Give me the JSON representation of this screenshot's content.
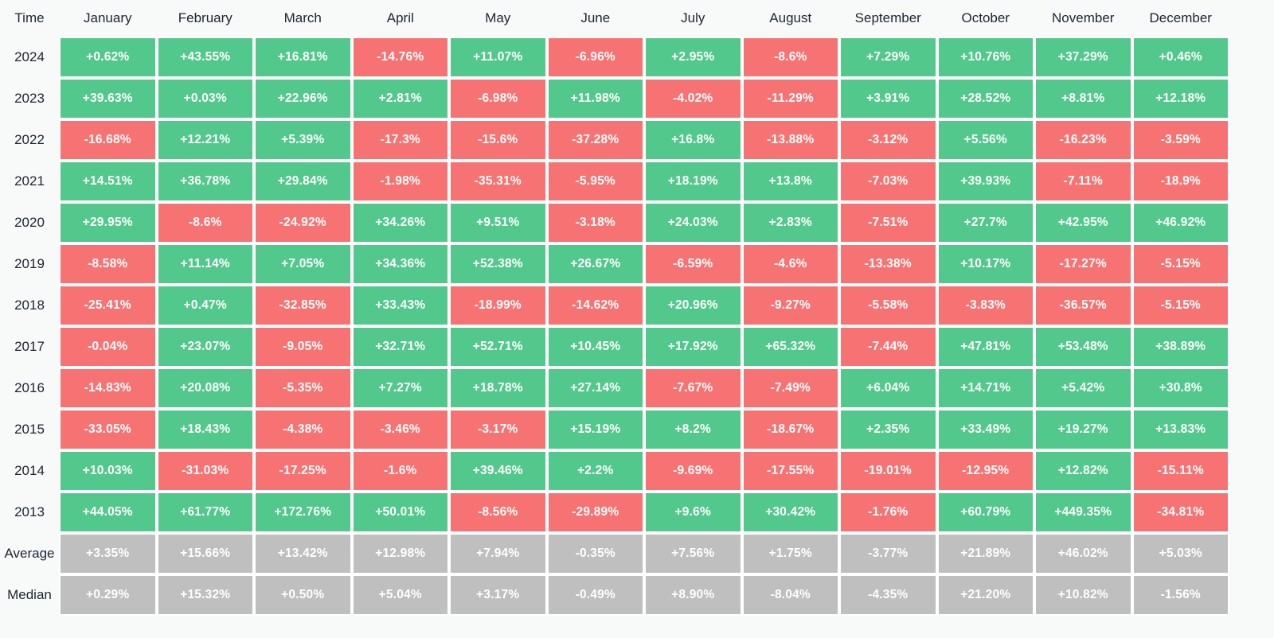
{
  "table": {
    "corner_label": "Time",
    "months": [
      "January",
      "February",
      "March",
      "April",
      "May",
      "June",
      "July",
      "August",
      "September",
      "October",
      "November",
      "December"
    ],
    "rows": [
      {
        "label": "2024",
        "type": "year",
        "values": [
          "+0.62%",
          "+43.55%",
          "+16.81%",
          "-14.76%",
          "+11.07%",
          "-6.96%",
          "+2.95%",
          "-8.6%",
          "+7.29%",
          "+10.76%",
          "+37.29%",
          "+0.46%"
        ]
      },
      {
        "label": "2023",
        "type": "year",
        "values": [
          "+39.63%",
          "+0.03%",
          "+22.96%",
          "+2.81%",
          "-6.98%",
          "+11.98%",
          "-4.02%",
          "-11.29%",
          "+3.91%",
          "+28.52%",
          "+8.81%",
          "+12.18%"
        ]
      },
      {
        "label": "2022",
        "type": "year",
        "values": [
          "-16.68%",
          "+12.21%",
          "+5.39%",
          "-17.3%",
          "-15.6%",
          "-37.28%",
          "+16.8%",
          "-13.88%",
          "-3.12%",
          "+5.56%",
          "-16.23%",
          "-3.59%"
        ]
      },
      {
        "label": "2021",
        "type": "year",
        "values": [
          "+14.51%",
          "+36.78%",
          "+29.84%",
          "-1.98%",
          "-35.31%",
          "-5.95%",
          "+18.19%",
          "+13.8%",
          "-7.03%",
          "+39.93%",
          "-7.11%",
          "-18.9%"
        ]
      },
      {
        "label": "2020",
        "type": "year",
        "values": [
          "+29.95%",
          "-8.6%",
          "-24.92%",
          "+34.26%",
          "+9.51%",
          "-3.18%",
          "+24.03%",
          "+2.83%",
          "-7.51%",
          "+27.7%",
          "+42.95%",
          "+46.92%"
        ]
      },
      {
        "label": "2019",
        "type": "year",
        "values": [
          "-8.58%",
          "+11.14%",
          "+7.05%",
          "+34.36%",
          "+52.38%",
          "+26.67%",
          "-6.59%",
          "-4.6%",
          "-13.38%",
          "+10.17%",
          "-17.27%",
          "-5.15%"
        ]
      },
      {
        "label": "2018",
        "type": "year",
        "values": [
          "-25.41%",
          "+0.47%",
          "-32.85%",
          "+33.43%",
          "-18.99%",
          "-14.62%",
          "+20.96%",
          "-9.27%",
          "-5.58%",
          "-3.83%",
          "-36.57%",
          "-5.15%"
        ]
      },
      {
        "label": "2017",
        "type": "year",
        "values": [
          "-0.04%",
          "+23.07%",
          "-9.05%",
          "+32.71%",
          "+52.71%",
          "+10.45%",
          "+17.92%",
          "+65.32%",
          "-7.44%",
          "+47.81%",
          "+53.48%",
          "+38.89%"
        ]
      },
      {
        "label": "2016",
        "type": "year",
        "values": [
          "-14.83%",
          "+20.08%",
          "-5.35%",
          "+7.27%",
          "+18.78%",
          "+27.14%",
          "-7.67%",
          "-7.49%",
          "+6.04%",
          "+14.71%",
          "+5.42%",
          "+30.8%"
        ]
      },
      {
        "label": "2015",
        "type": "year",
        "values": [
          "-33.05%",
          "+18.43%",
          "-4.38%",
          "-3.46%",
          "-3.17%",
          "+15.19%",
          "+8.2%",
          "-18.67%",
          "+2.35%",
          "+33.49%",
          "+19.27%",
          "+13.83%"
        ]
      },
      {
        "label": "2014",
        "type": "year",
        "values": [
          "+10.03%",
          "-31.03%",
          "-17.25%",
          "-1.6%",
          "+39.46%",
          "+2.2%",
          "-9.69%",
          "-17.55%",
          "-19.01%",
          "-12.95%",
          "+12.82%",
          "-15.11%"
        ]
      },
      {
        "label": "2013",
        "type": "year",
        "values": [
          "+44.05%",
          "+61.77%",
          "+172.76%",
          "+50.01%",
          "-8.56%",
          "-29.89%",
          "+9.6%",
          "+30.42%",
          "-1.76%",
          "+60.79%",
          "+449.35%",
          "-34.81%"
        ]
      },
      {
        "label": "Average",
        "type": "summary",
        "values": [
          "+3.35%",
          "+15.66%",
          "+13.42%",
          "+12.98%",
          "+7.94%",
          "-0.35%",
          "+7.56%",
          "+1.75%",
          "-3.77%",
          "+21.89%",
          "+46.02%",
          "+5.03%"
        ]
      },
      {
        "label": "Median",
        "type": "summary",
        "values": [
          "+0.29%",
          "+15.32%",
          "+0.50%",
          "+5.04%",
          "+3.17%",
          "-0.49%",
          "+8.90%",
          "-8.04%",
          "-4.35%",
          "+21.20%",
          "+10.82%",
          "-1.56%"
        ]
      }
    ]
  },
  "colors": {
    "positive": "#52c88c",
    "negative": "#f77373",
    "summary": "#bfbfbf",
    "cell_text": "#ffffff",
    "header_text": "#1f2430",
    "background": "#f8f9f9",
    "cell_gap": "#ffffff"
  },
  "chart_data": {
    "type": "heatmap",
    "title": "",
    "columns": [
      "January",
      "February",
      "March",
      "April",
      "May",
      "June",
      "July",
      "August",
      "September",
      "October",
      "November",
      "December"
    ],
    "row_labels": [
      "2024",
      "2023",
      "2022",
      "2021",
      "2020",
      "2019",
      "2018",
      "2017",
      "2016",
      "2015",
      "2014",
      "2013",
      "Average",
      "Median"
    ],
    "unit": "percent",
    "legend_position": "none",
    "grid": false,
    "series": [
      {
        "name": "2024",
        "values": [
          0.62,
          43.55,
          16.81,
          -14.76,
          11.07,
          -6.96,
          2.95,
          -8.6,
          7.29,
          10.76,
          37.29,
          0.46
        ]
      },
      {
        "name": "2023",
        "values": [
          39.63,
          0.03,
          22.96,
          2.81,
          -6.98,
          11.98,
          -4.02,
          -11.29,
          3.91,
          28.52,
          8.81,
          12.18
        ]
      },
      {
        "name": "2022",
        "values": [
          -16.68,
          12.21,
          5.39,
          -17.3,
          -15.6,
          -37.28,
          16.8,
          -13.88,
          -3.12,
          5.56,
          -16.23,
          -3.59
        ]
      },
      {
        "name": "2021",
        "values": [
          14.51,
          36.78,
          29.84,
          -1.98,
          -35.31,
          -5.95,
          18.19,
          13.8,
          -7.03,
          39.93,
          -7.11,
          -18.9
        ]
      },
      {
        "name": "2020",
        "values": [
          29.95,
          -8.6,
          -24.92,
          34.26,
          9.51,
          -3.18,
          24.03,
          2.83,
          -7.51,
          27.7,
          42.95,
          46.92
        ]
      },
      {
        "name": "2019",
        "values": [
          -8.58,
          11.14,
          7.05,
          34.36,
          52.38,
          26.67,
          -6.59,
          -4.6,
          -13.38,
          10.17,
          -17.27,
          -5.15
        ]
      },
      {
        "name": "2018",
        "values": [
          -25.41,
          0.47,
          -32.85,
          33.43,
          -18.99,
          -14.62,
          20.96,
          -9.27,
          -5.58,
          -3.83,
          -36.57,
          -5.15
        ]
      },
      {
        "name": "2017",
        "values": [
          -0.04,
          23.07,
          -9.05,
          32.71,
          52.71,
          10.45,
          17.92,
          65.32,
          -7.44,
          47.81,
          53.48,
          38.89
        ]
      },
      {
        "name": "2016",
        "values": [
          -14.83,
          20.08,
          -5.35,
          7.27,
          18.78,
          27.14,
          -7.67,
          -7.49,
          6.04,
          14.71,
          5.42,
          30.8
        ]
      },
      {
        "name": "2015",
        "values": [
          -33.05,
          18.43,
          -4.38,
          -3.46,
          -3.17,
          15.19,
          8.2,
          -18.67,
          2.35,
          33.49,
          19.27,
          13.83
        ]
      },
      {
        "name": "2014",
        "values": [
          10.03,
          -31.03,
          -17.25,
          -1.6,
          39.46,
          2.2,
          -9.69,
          -17.55,
          -19.01,
          -12.95,
          12.82,
          -15.11
        ]
      },
      {
        "name": "2013",
        "values": [
          44.05,
          61.77,
          172.76,
          50.01,
          -8.56,
          -29.89,
          9.6,
          30.42,
          -1.76,
          60.79,
          449.35,
          -34.81
        ]
      },
      {
        "name": "Average",
        "values": [
          3.35,
          15.66,
          13.42,
          12.98,
          7.94,
          -0.35,
          7.56,
          1.75,
          -3.77,
          21.89,
          46.02,
          5.03
        ]
      },
      {
        "name": "Median",
        "values": [
          0.29,
          15.32,
          0.5,
          5.04,
          3.17,
          -0.49,
          8.9,
          -8.04,
          -4.35,
          21.2,
          10.82,
          -1.56
        ]
      }
    ],
    "color_coding": "green = positive month return, red = negative month return, gray = Average/Median summary rows"
  }
}
